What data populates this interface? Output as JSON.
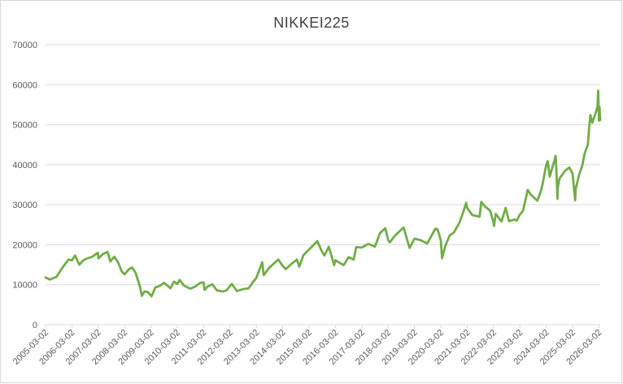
{
  "chart_data": {
    "type": "line",
    "title": "NIKKEI225",
    "xlabel": "",
    "ylabel": "",
    "ylim": [
      0,
      70000
    ],
    "y_ticks": [
      0,
      10000,
      20000,
      30000,
      40000,
      50000,
      60000,
      70000
    ],
    "x_tick_labels": [
      "2005-03-02",
      "2006-03-02",
      "2007-03-02",
      "2008-03-02",
      "2009-03-02",
      "2010-03-02",
      "2011-03-02",
      "2012-03-02",
      "2013-03-02",
      "2014-03-02",
      "2015-03-02",
      "2016-03-02",
      "2017-03-02",
      "2018-03-02",
      "2019-03-02",
      "2020-03-02",
      "2021-03-02",
      "2022-03-02",
      "2023-03-02",
      "2024-03-02",
      "2025-03-02",
      "2026-03-02"
    ],
    "grid": "horizontal",
    "legend": "none",
    "line_color": "#70ad47",
    "series": [
      {
        "x": [
          "2005-03-02",
          "2005-05-01",
          "2005-08-01",
          "2005-11-01",
          "2006-01-15",
          "2006-03-02",
          "2006-04-15",
          "2006-06-13",
          "2006-08-01",
          "2006-10-01",
          "2006-12-01",
          "2007-02-26",
          "2007-03-05",
          "2007-05-01",
          "2007-07-09",
          "2007-08-17",
          "2007-10-10",
          "2007-12-01",
          "2008-01-22",
          "2008-03-02",
          "2008-05-01",
          "2008-06-15",
          "2008-08-01",
          "2008-10-01",
          "2008-10-28",
          "2008-12-01",
          "2009-01-15",
          "2009-03-10",
          "2009-05-01",
          "2009-07-01",
          "2009-08-30",
          "2009-11-27",
          "2010-01-15",
          "2010-03-02",
          "2010-04-05",
          "2010-06-01",
          "2010-08-31",
          "2010-11-01",
          "2011-01-15",
          "2011-03-02",
          "2011-03-15",
          "2011-05-01",
          "2011-07-01",
          "2011-09-01",
          "2011-11-25",
          "2012-01-15",
          "2012-03-02",
          "2012-03-27",
          "2012-06-04",
          "2012-09-01",
          "2012-11-15",
          "2013-01-15",
          "2013-03-02",
          "2013-05-22",
          "2013-06-13",
          "2013-09-01",
          "2013-12-30",
          "2014-03-02",
          "2014-04-14",
          "2014-06-30",
          "2014-09-15",
          "2014-10-17",
          "2014-12-15",
          "2015-03-02",
          "2015-06-24",
          "2015-08-25",
          "2015-10-01",
          "2015-12-01",
          "2016-02-12",
          "2016-03-02",
          "2016-06-24",
          "2016-09-01",
          "2016-11-09",
          "2016-12-15",
          "2017-03-02",
          "2017-06-01",
          "2017-09-01",
          "2017-11-09",
          "2018-01-23",
          "2018-03-02",
          "2018-03-26",
          "2018-06-01",
          "2018-10-02",
          "2018-12-25",
          "2019-03-02",
          "2019-06-01",
          "2019-08-26",
          "2019-12-17",
          "2020-01-15",
          "2020-03-02",
          "2020-03-19",
          "2020-05-01",
          "2020-07-01",
          "2020-09-01",
          "2020-11-15",
          "2021-01-15",
          "2021-02-16",
          "2021-03-02",
          "2021-05-13",
          "2021-08-20",
          "2021-09-14",
          "2021-11-01",
          "2022-01-15",
          "2022-03-02",
          "2022-03-09",
          "2022-04-01",
          "2022-06-20",
          "2022-08-17",
          "2022-10-03",
          "2022-12-20",
          "2023-01-15",
          "2023-03-02",
          "2023-04-15",
          "2023-06-19",
          "2023-08-01",
          "2023-10-31",
          "2023-12-15",
          "2024-01-15",
          "2024-02-22",
          "2024-03-02",
          "2024-03-22",
          "2024-04-19",
          "2024-07-11",
          "2024-08-05",
          "2024-08-06",
          "2024-09-01",
          "2024-11-15",
          "2025-01-15",
          "2025-03-02",
          "2025-04-07",
          "2025-04-15",
          "2025-06-01",
          "2025-07-15",
          "2025-08-15",
          "2025-09-30",
          "2025-10-15",
          "2025-11-04",
          "2025-12-01",
          "2026-01-15",
          "2026-02-10",
          "2026-02-20",
          "2026-03-02",
          "2026-03-10",
          "2026-03-20"
        ],
        "y": [
          11800,
          11300,
          12000,
          14500,
          16300,
          16100,
          17300,
          15000,
          16000,
          16600,
          16900,
          18000,
          16600,
          17600,
          18200,
          15800,
          17000,
          15600,
          13300,
          12600,
          13900,
          14300,
          13000,
          9500,
          7200,
          8300,
          8200,
          7100,
          9300,
          9700,
          10500,
          9100,
          10800,
          10200,
          11200,
          9800,
          9000,
          9500,
          10500,
          10600,
          8700,
          9600,
          10100,
          8600,
          8300,
          8600,
          9700,
          10200,
          8400,
          8900,
          9100,
          10700,
          11700,
          15600,
          12400,
          14300,
          16300,
          14700,
          13900,
          15200,
          16300,
          14500,
          17400,
          18800,
          20900,
          18400,
          17300,
          19500,
          14900,
          16100,
          14900,
          16900,
          16300,
          19400,
          19300,
          20200,
          19500,
          22900,
          24100,
          21200,
          20600,
          22200,
          24300,
          19200,
          21500,
          21100,
          20300,
          24000,
          23900,
          21100,
          16600,
          19600,
          22300,
          23100,
          25500,
          28600,
          30500,
          29200,
          27400,
          27000,
          30700,
          29600,
          28500,
          25500,
          24700,
          27700,
          25800,
          29200,
          25900,
          26300,
          26000,
          27500,
          28500,
          33700,
          32500,
          31000,
          33200,
          35500,
          39100,
          39900,
          40900,
          37000,
          42200,
          31500,
          34000,
          36500,
          38400,
          39300,
          37800,
          31100,
          34000,
          37500,
          39800,
          42800,
          45000,
          48800,
          52400,
          50500,
          52900,
          54500,
          58500,
          51000,
          54500,
          51200
        ]
      }
    ]
  }
}
